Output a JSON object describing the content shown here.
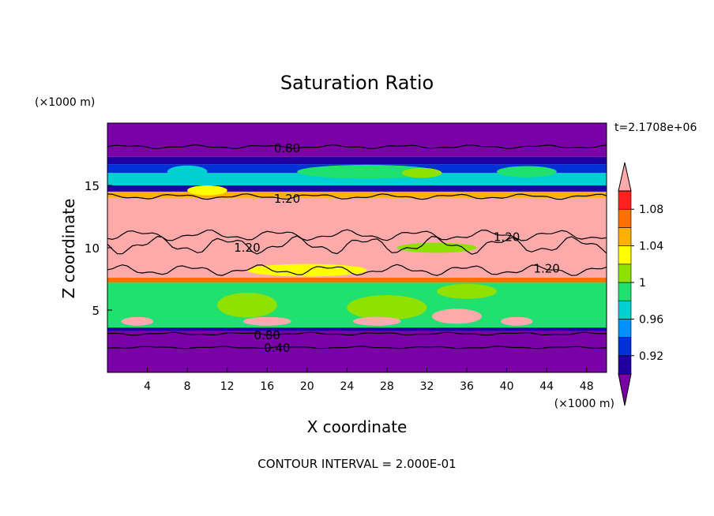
{
  "chart_data": {
    "type": "heatmap",
    "title": "Saturation Ratio",
    "xlabel": "X coordinate",
    "ylabel": "Z coordinate",
    "x_unit": "(×1000 m)",
    "y_unit": "(×1000 m)",
    "time_label": "t=2.1708e+06",
    "footer": "CONTOUR INTERVAL = 2.000E-01",
    "xlim": [
      0,
      50
    ],
    "ylim": [
      0,
      20
    ],
    "x_ticks": [
      4,
      8,
      12,
      16,
      20,
      24,
      28,
      32,
      36,
      40,
      44,
      48
    ],
    "x_tick_labels": [
      "4",
      "8",
      "12",
      "16",
      "20",
      "24",
      "28",
      "32",
      "36",
      "40",
      "44",
      "48"
    ],
    "y_ticks": [
      5,
      10,
      15
    ],
    "y_tick_labels": [
      "5",
      "10",
      "15"
    ],
    "colorbar": {
      "levels": [
        0.92,
        0.94,
        0.96,
        0.98,
        1.0,
        1.02,
        1.04,
        1.06,
        1.08
      ],
      "tick_labels": [
        "0.92",
        "0.96",
        "1",
        "1.04",
        "1.08"
      ],
      "colors": [
        "#7a00a8",
        "#2000a0",
        "#0030d8",
        "#0090ff",
        "#00d0d0",
        "#20e070",
        "#90e000",
        "#ffff00",
        "#ffb000",
        "#ff7000",
        "#ff2020",
        "#ffaaaa"
      ]
    },
    "bands": [
      {
        "z0": 0.0,
        "z1": 3.3,
        "color": "#7a00a8"
      },
      {
        "z0": 3.3,
        "z1": 3.6,
        "color": "#2000a0"
      },
      {
        "z0": 3.6,
        "z1": 7.2,
        "color": "#20e070"
      },
      {
        "z0": 7.2,
        "z1": 7.6,
        "color": "#ff7000"
      },
      {
        "z0": 7.6,
        "z1": 14.0,
        "color": "#ffaaaa"
      },
      {
        "z0": 14.0,
        "z1": 14.5,
        "color": "#ffb000"
      },
      {
        "z0": 14.5,
        "z1": 15.0,
        "color": "#2000a0"
      },
      {
        "z0": 15.0,
        "z1": 16.0,
        "color": "#00d0d0"
      },
      {
        "z0": 16.0,
        "z1": 16.7,
        "color": "#0030d8"
      },
      {
        "z0": 16.7,
        "z1": 17.3,
        "color": "#2000a0"
      },
      {
        "z0": 17.3,
        "z1": 20.0,
        "color": "#7a00a8"
      }
    ],
    "patches": [
      {
        "x": 8,
        "z": 16.1,
        "rx": 2,
        "rz": 0.5,
        "color": "#00d0d0"
      },
      {
        "x": 26,
        "z": 16.1,
        "rx": 7,
        "rz": 0.55,
        "color": "#20e070"
      },
      {
        "x": 31.5,
        "z": 16.0,
        "rx": 2,
        "rz": 0.4,
        "color": "#90e000"
      },
      {
        "x": 42,
        "z": 16.1,
        "rx": 3,
        "rz": 0.45,
        "color": "#20e070"
      },
      {
        "x": 10,
        "z": 14.6,
        "rx": 2,
        "rz": 0.4,
        "color": "#ffff00"
      },
      {
        "x": 33,
        "z": 10.0,
        "rx": 4,
        "rz": 0.4,
        "color": "#90e000"
      },
      {
        "x": 20,
        "z": 8.2,
        "rx": 6,
        "rz": 0.5,
        "color": "#ffff00"
      },
      {
        "x": 36,
        "z": 6.5,
        "rx": 3,
        "rz": 0.6,
        "color": "#90e000"
      },
      {
        "x": 14,
        "z": 5.4,
        "rx": 3,
        "rz": 1.0,
        "color": "#90e000"
      },
      {
        "x": 28,
        "z": 5.2,
        "rx": 4,
        "rz": 1.0,
        "color": "#90e000"
      },
      {
        "x": 3,
        "z": 4.1,
        "rx": 1.6,
        "rz": 0.35,
        "color": "#ffaaaa"
      },
      {
        "x": 16,
        "z": 4.1,
        "rx": 2.4,
        "rz": 0.35,
        "color": "#ffaaaa"
      },
      {
        "x": 27,
        "z": 4.1,
        "rx": 2.4,
        "rz": 0.35,
        "color": "#ffaaaa"
      },
      {
        "x": 35,
        "z": 4.5,
        "rx": 2.5,
        "rz": 0.6,
        "color": "#ffaaaa"
      },
      {
        "x": 41,
        "z": 4.1,
        "rx": 1.6,
        "rz": 0.35,
        "color": "#ffaaaa"
      }
    ],
    "contours": [
      {
        "z": 18.1,
        "amp": 0.1,
        "label": "0.80",
        "label_x": 18
      },
      {
        "z": 14.1,
        "amp": 0.15,
        "label": "1.20",
        "label_x": 18
      },
      {
        "z": 10.2,
        "amp": 0.5,
        "label": "1.20",
        "label_x": 14
      },
      {
        "z": 11.0,
        "amp": 0.3,
        "label": "1.20",
        "label_x": 40
      },
      {
        "z": 8.2,
        "amp": 0.3,
        "label": "1.20",
        "label_x": 44
      },
      {
        "z": 3.1,
        "amp": 0.08,
        "label": "0.80",
        "label_x": 16
      },
      {
        "z": 2.0,
        "amp": 0.06,
        "label": "0.40",
        "label_x": 17
      }
    ]
  }
}
